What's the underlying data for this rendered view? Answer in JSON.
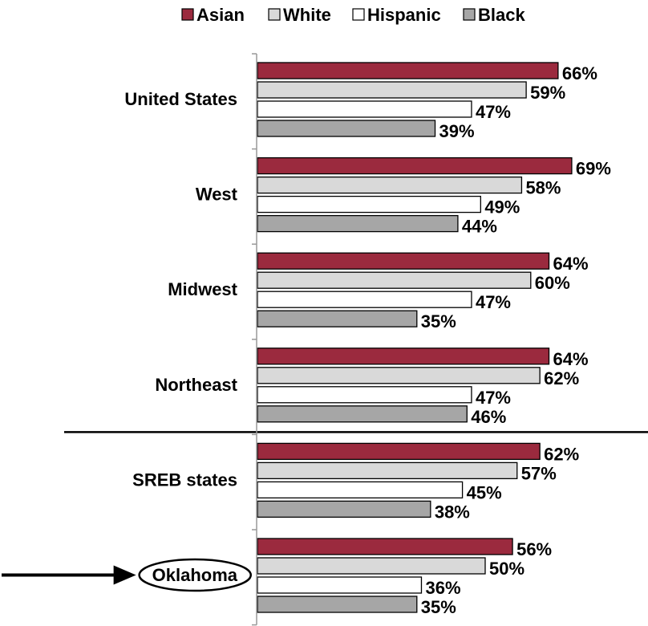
{
  "chart_data": {
    "type": "bar",
    "orientation": "horizontal",
    "title": "",
    "xlabel": "",
    "ylabel": "",
    "xlim": [
      0,
      75
    ],
    "grid": false,
    "legend_position": "top",
    "value_format": "percent",
    "categories": [
      "United States",
      "West",
      "Midwest",
      "Northeast",
      "SREB states",
      "Oklahoma"
    ],
    "series": [
      {
        "name": "Asian",
        "color": "#9b2a3e",
        "values": [
          66,
          69,
          64,
          64,
          62,
          56
        ]
      },
      {
        "name": "White",
        "color": "#d9d9d9",
        "values": [
          59,
          58,
          60,
          62,
          57,
          50
        ]
      },
      {
        "name": "Hispanic",
        "color": "#ffffff",
        "values": [
          47,
          49,
          47,
          47,
          45,
          36
        ]
      },
      {
        "name": "Black",
        "color": "#a6a6a6",
        "values": [
          39,
          44,
          35,
          46,
          38,
          35
        ]
      }
    ],
    "separator_after_category": "Northeast",
    "highlighted_category": "Oklahoma",
    "highlight_marks": [
      "arrow",
      "ellipse"
    ]
  }
}
